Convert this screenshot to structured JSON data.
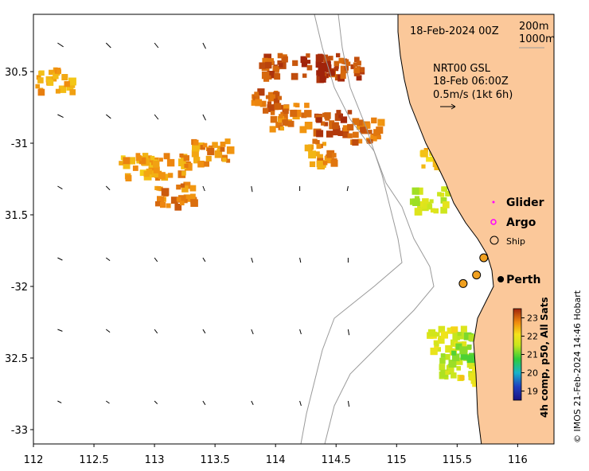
{
  "map": {
    "date_title": "18-Feb-2024 00Z",
    "contours": [
      "200m",
      "1000m"
    ],
    "current_source": "NRT00 GSL",
    "current_time": "18-Feb 06:00Z",
    "current_scale": "0.5m/s (1kt 6h)",
    "lon_ticks": [
      "112",
      "112.5",
      "113",
      "113.5",
      "114",
      "114.5",
      "115",
      "115.5",
      "116"
    ],
    "lat_ticks": [
      "30.5",
      "-31",
      "31.5",
      "-32",
      "32.5",
      "-33"
    ],
    "lon_range": [
      112,
      116.3
    ],
    "lat_range": [
      -33.1,
      -30.1
    ],
    "legend": {
      "glider": "Glider",
      "argo": "Argo",
      "ship": "Ship",
      "glider_color": "#ff00ff",
      "argo_color": "#ff00ff"
    },
    "city": "Perth",
    "city_lon": 115.86,
    "city_lat": -31.95,
    "colorbar": {
      "ticks": [
        "23",
        "22",
        "21",
        "20",
        "19"
      ],
      "min": 18.5,
      "max": 23.5,
      "label": "4h comp, p50, All Sats"
    },
    "credit": "© IMOS 21-Feb-2024 14:46 Hobart",
    "colors": {
      "land": "#fbc89a",
      "contour": "#9a9a9a",
      "coast": "#000000"
    },
    "sst_patches": [
      {
        "lon": 114.0,
        "lat": -30.45,
        "temp": 23.1
      },
      {
        "lon": 114.35,
        "lat": -30.45,
        "temp": 23.4
      },
      {
        "lon": 114.55,
        "lat": -30.45,
        "temp": 23.2
      },
      {
        "lon": 113.95,
        "lat": -30.7,
        "temp": 23.0
      },
      {
        "lon": 114.1,
        "lat": -30.8,
        "temp": 22.8
      },
      {
        "lon": 114.45,
        "lat": -30.85,
        "temp": 23.2
      },
      {
        "lon": 114.7,
        "lat": -30.9,
        "temp": 22.9
      },
      {
        "lon": 114.35,
        "lat": -31.05,
        "temp": 22.7
      },
      {
        "lon": 113.1,
        "lat": -31.15,
        "temp": 22.6
      },
      {
        "lon": 112.85,
        "lat": -31.15,
        "temp": 22.5
      },
      {
        "lon": 113.15,
        "lat": -31.35,
        "temp": 22.8
      },
      {
        "lon": 113.45,
        "lat": -31.05,
        "temp": 22.7
      },
      {
        "lon": 112.15,
        "lat": -30.55,
        "temp": 22.5
      },
      {
        "lon": 115.3,
        "lat": -31.1,
        "temp": 22.4
      },
      {
        "lon": 115.25,
        "lat": -31.38,
        "temp": 21.6
      },
      {
        "lon": 115.4,
        "lat": -32.35,
        "temp": 21.9
      },
      {
        "lon": 115.5,
        "lat": -32.55,
        "temp": 21.5
      },
      {
        "lon": 115.65,
        "lat": -32.6,
        "temp": 22.1
      },
      {
        "lon": 115.6,
        "lat": -32.4,
        "temp": 21.2
      }
    ],
    "current_arrows": [
      {
        "lon": 112.2,
        "lat": -30.3,
        "u": 0.12,
        "v": -0.08
      },
      {
        "lon": 112.6,
        "lat": -30.3,
        "u": 0.1,
        "v": -0.1
      },
      {
        "lon": 113.0,
        "lat": -30.3,
        "u": 0.08,
        "v": -0.1
      },
      {
        "lon": 113.4,
        "lat": -30.3,
        "u": 0.06,
        "v": -0.12
      },
      {
        "lon": 112.2,
        "lat": -30.8,
        "u": 0.12,
        "v": -0.06
      },
      {
        "lon": 112.6,
        "lat": -30.8,
        "u": 0.1,
        "v": -0.08
      },
      {
        "lon": 113.0,
        "lat": -30.8,
        "u": 0.08,
        "v": -0.1
      },
      {
        "lon": 113.4,
        "lat": -30.8,
        "u": 0.06,
        "v": -0.12
      },
      {
        "lon": 112.2,
        "lat": -31.3,
        "u": 0.1,
        "v": -0.06
      },
      {
        "lon": 112.6,
        "lat": -31.3,
        "u": 0.08,
        "v": -0.08
      },
      {
        "lon": 113.4,
        "lat": -31.3,
        "u": 0.04,
        "v": -0.1
      },
      {
        "lon": 113.8,
        "lat": -31.3,
        "u": 0.02,
        "v": -0.12
      },
      {
        "lon": 114.2,
        "lat": -31.3,
        "u": 0.0,
        "v": -0.1
      },
      {
        "lon": 114.6,
        "lat": -31.3,
        "u": -0.02,
        "v": -0.1
      },
      {
        "lon": 112.2,
        "lat": -31.8,
        "u": 0.1,
        "v": -0.05
      },
      {
        "lon": 112.6,
        "lat": -31.8,
        "u": 0.08,
        "v": -0.06
      },
      {
        "lon": 113.0,
        "lat": -31.8,
        "u": 0.06,
        "v": -0.08
      },
      {
        "lon": 113.4,
        "lat": -31.8,
        "u": 0.05,
        "v": -0.08
      },
      {
        "lon": 113.8,
        "lat": -31.8,
        "u": 0.03,
        "v": -0.1
      },
      {
        "lon": 114.2,
        "lat": -31.8,
        "u": 0.02,
        "v": -0.1
      },
      {
        "lon": 114.6,
        "lat": -31.8,
        "u": 0.0,
        "v": -0.1
      },
      {
        "lon": 112.2,
        "lat": -32.3,
        "u": 0.1,
        "v": -0.04
      },
      {
        "lon": 112.6,
        "lat": -32.3,
        "u": 0.08,
        "v": -0.06
      },
      {
        "lon": 113.0,
        "lat": -32.3,
        "u": 0.06,
        "v": -0.08
      },
      {
        "lon": 113.4,
        "lat": -32.3,
        "u": 0.05,
        "v": -0.08
      },
      {
        "lon": 113.8,
        "lat": -32.3,
        "u": 0.04,
        "v": -0.1
      },
      {
        "lon": 114.2,
        "lat": -32.3,
        "u": 0.03,
        "v": -0.1
      },
      {
        "lon": 114.6,
        "lat": -32.3,
        "u": 0.02,
        "v": -0.12
      },
      {
        "lon": 112.2,
        "lat": -32.8,
        "u": 0.08,
        "v": -0.04
      },
      {
        "lon": 112.6,
        "lat": -32.8,
        "u": 0.07,
        "v": -0.05
      },
      {
        "lon": 113.0,
        "lat": -32.8,
        "u": 0.06,
        "v": -0.06
      },
      {
        "lon": 113.4,
        "lat": -32.8,
        "u": 0.05,
        "v": -0.08
      },
      {
        "lon": 113.8,
        "lat": -32.8,
        "u": 0.04,
        "v": -0.08
      },
      {
        "lon": 114.2,
        "lat": -32.8,
        "u": 0.03,
        "v": -0.1
      },
      {
        "lon": 114.6,
        "lat": -32.8,
        "u": 0.02,
        "v": -0.12
      }
    ],
    "ships": [
      {
        "lon": 115.55,
        "lat": -31.98
      },
      {
        "lon": 115.66,
        "lat": -31.92
      },
      {
        "lon": 115.72,
        "lat": -31.8
      }
    ]
  }
}
